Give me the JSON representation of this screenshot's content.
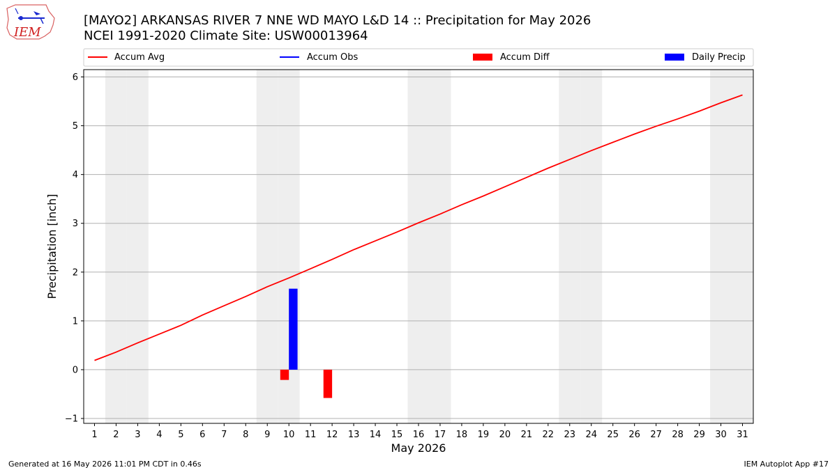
{
  "header": {
    "title_line1": "[MAYO2] ARKANSAS RIVER 7 NNE WD MAYO L&D 14 :: Precipitation for May 2026",
    "title_line2": "NCEI 1991-2020 Climate Site: USW00013964",
    "logo_text": "IEM"
  },
  "footer": {
    "generated": "Generated at 16 May 2026 11:01 PM CDT in 0.46s",
    "app": "IEM Autoplot App #17"
  },
  "colors": {
    "accum_avg": "#ff0000",
    "accum_obs": "#0000ff",
    "accum_diff": "#ff0000",
    "daily_precip": "#0000ff",
    "weekend_shade": "#eeeeee",
    "grid": "#b0b0b0"
  },
  "chart_data": {
    "type": "bar",
    "xlabel": "May 2026",
    "ylabel": "Precipitation [inch]",
    "xlim": [
      0.5,
      31.5
    ],
    "ylim": [
      -1.1,
      6.15
    ],
    "yticks": [
      -1,
      0,
      1,
      2,
      3,
      4,
      5,
      6
    ],
    "x": [
      1,
      2,
      3,
      4,
      5,
      6,
      7,
      8,
      9,
      10,
      11,
      12,
      13,
      14,
      15,
      16,
      17,
      18,
      19,
      20,
      21,
      22,
      23,
      24,
      25,
      26,
      27,
      28,
      29,
      30,
      31
    ],
    "grid": "y",
    "legend_position": "top",
    "weekend_days": [
      2,
      3,
      9,
      10,
      16,
      17,
      23,
      24,
      30,
      31
    ],
    "legend": [
      "Accum Avg",
      "Accum Obs",
      "Accum Diff",
      "Daily Precip"
    ],
    "series": [
      {
        "name": "Accum Avg",
        "type": "line",
        "values": [
          0.19,
          0.36,
          0.55,
          0.73,
          0.91,
          1.12,
          1.31,
          1.5,
          1.7,
          1.88,
          2.07,
          2.26,
          2.46,
          2.64,
          2.82,
          3.01,
          3.19,
          3.38,
          3.56,
          3.75,
          3.94,
          4.13,
          4.31,
          4.49,
          4.66,
          4.83,
          4.99,
          5.14,
          5.3,
          5.47,
          5.63
        ]
      },
      {
        "name": "Accum Diff",
        "type": "bar",
        "points": [
          [
            10,
            -0.21
          ],
          [
            12,
            -0.58
          ]
        ]
      },
      {
        "name": "Daily Precip",
        "type": "bar",
        "points": [
          [
            10,
            1.66
          ]
        ]
      }
    ]
  }
}
